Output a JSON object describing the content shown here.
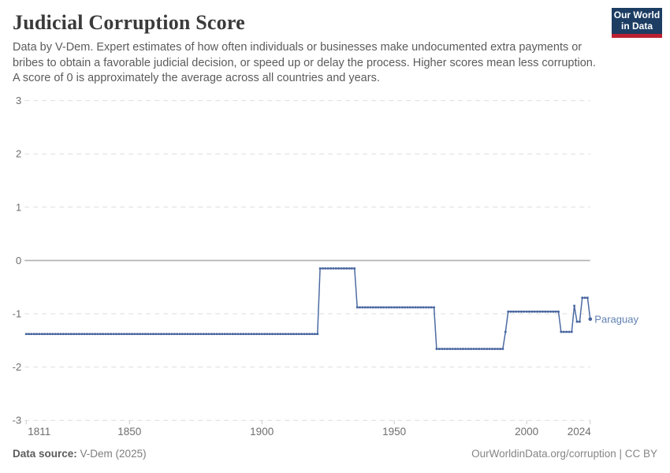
{
  "header": {
    "title": "Judicial Corruption Score",
    "subtitle": "Data by V-Dem. Expert estimates of how often individuals or businesses make undocumented extra payments or bribes to obtain a favorable judicial decision, or speed up or delay the process. Higher scores mean less corruption. A score of 0 is approximately the average across all countries and years.",
    "logo": {
      "line1": "Our World",
      "line2": "in Data",
      "bg": "#1d3d63",
      "stripe": "#bc2132"
    }
  },
  "chart_data": {
    "type": "line",
    "title": "Judicial Corruption Score",
    "xlabel": "",
    "ylabel": "",
    "xlim": [
      1811,
      2024
    ],
    "ylim": [
      -3,
      3
    ],
    "x_ticks": [
      1811,
      1850,
      1900,
      1950,
      2000,
      2024
    ],
    "y_ticks": [
      3,
      2,
      1,
      0,
      -1,
      -2,
      -3
    ],
    "grid": "horizontal-dashed",
    "legend_position": "end-of-line-label",
    "series": [
      {
        "name": "Paraguay",
        "color": "#4d6ba3",
        "label_color": "#6080b0",
        "marker": "square-every-year",
        "segments": [
          {
            "from": 1811,
            "to": 1921,
            "value": -1.38
          },
          {
            "from": 1922,
            "to": 1935,
            "value": -0.15
          },
          {
            "from": 1936,
            "to": 1965,
            "value": -0.88
          },
          {
            "from": 1966,
            "to": 1991,
            "value": -1.66
          },
          {
            "from": 1992,
            "to": 1992,
            "value": -1.34
          },
          {
            "from": 1993,
            "to": 2012,
            "value": -0.96
          },
          {
            "from": 2013,
            "to": 2017,
            "value": -1.34
          },
          {
            "from": 2018,
            "to": 2018,
            "value": -0.85
          },
          {
            "from": 2019,
            "to": 2020,
            "value": -1.15
          },
          {
            "from": 2021,
            "to": 2023,
            "value": -0.7
          },
          {
            "from": 2024,
            "to": 2024,
            "value": -1.1
          }
        ]
      }
    ]
  },
  "footer": {
    "source_label": "Data source:",
    "source_value": "V-Dem (2025)",
    "attribution": "OurWorldinData.org/corruption | CC BY"
  },
  "colors": {
    "background": "#ffffff",
    "series_blue": "#4d6ba3",
    "marker_blue": "#46649e",
    "entity_label": "#6080b0",
    "gridline": "#dedede",
    "zero_line": "#b0b0b0",
    "axis_text": "#6e6e6e",
    "tick_mark": "#c9c9c9",
    "logo_bg": "#1d3d63",
    "logo_stripe": "#bc2132"
  }
}
